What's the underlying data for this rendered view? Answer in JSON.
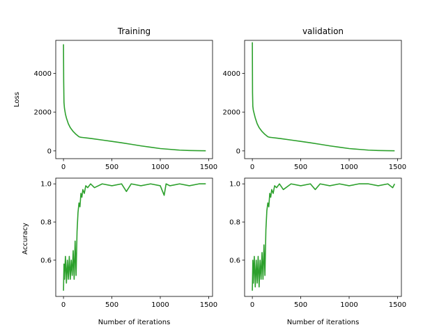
{
  "chart_data": [
    {
      "type": "line",
      "title": "Training",
      "xlabel": "",
      "ylabel": "Loss",
      "xlim": [
        -80,
        1540
      ],
      "ylim": [
        -400,
        5700
      ],
      "xticks": [
        0,
        500,
        1000,
        1500
      ],
      "xtick_labels": [
        "0",
        "500",
        "1000",
        "1500"
      ],
      "yticks": [
        0,
        2000,
        4000
      ],
      "ytick_labels": [
        "0",
        "2000",
        "4000"
      ],
      "grid": false,
      "series": [
        {
          "color": "#2ca02c",
          "x": [
            0,
            2,
            5,
            10,
            20,
            30,
            50,
            70,
            100,
            130,
            160,
            180,
            200,
            250,
            300,
            400,
            500,
            600,
            700,
            800,
            900,
            1000,
            1100,
            1200,
            1300,
            1400,
            1470
          ],
          "y": [
            5500,
            3600,
            2500,
            2200,
            1900,
            1700,
            1400,
            1200,
            1000,
            850,
            730,
            700,
            690,
            660,
            630,
            560,
            490,
            420,
            340,
            260,
            190,
            120,
            80,
            40,
            20,
            10,
            5
          ]
        }
      ]
    },
    {
      "type": "line",
      "title": "validation",
      "xlabel": "",
      "ylabel": "",
      "xlim": [
        -80,
        1540
      ],
      "ylim": [
        -400,
        5700
      ],
      "xticks": [
        0,
        500,
        1000,
        1500
      ],
      "xtick_labels": [
        "0",
        "500",
        "1000",
        "1500"
      ],
      "yticks": [
        0,
        2000,
        4000
      ],
      "ytick_labels": [
        "0",
        "2000",
        "4000"
      ],
      "grid": false,
      "series": [
        {
          "color": "#2ca02c",
          "x": [
            0,
            2,
            5,
            10,
            20,
            30,
            50,
            70,
            100,
            130,
            160,
            180,
            200,
            250,
            300,
            400,
            500,
            600,
            700,
            800,
            900,
            1000,
            1100,
            1200,
            1300,
            1400,
            1470
          ],
          "y": [
            5600,
            3000,
            2300,
            2100,
            1900,
            1700,
            1400,
            1200,
            1000,
            850,
            730,
            700,
            690,
            660,
            630,
            560,
            490,
            420,
            340,
            260,
            190,
            120,
            80,
            40,
            20,
            10,
            5
          ]
        }
      ]
    },
    {
      "type": "line",
      "title": "",
      "xlabel": "Number of iterations",
      "ylabel": "Accuracy",
      "xlim": [
        -80,
        1540
      ],
      "ylim": [
        0.41,
        1.03
      ],
      "xticks": [
        0,
        500,
        1000,
        1500
      ],
      "xtick_labels": [
        "0",
        "500",
        "1000",
        "1500"
      ],
      "yticks": [
        0.6,
        0.8,
        1.0
      ],
      "ytick_labels": [
        "0.6",
        "0.8",
        "1.0"
      ],
      "grid": false,
      "series": [
        {
          "color": "#2ca02c",
          "x": [
            0,
            5,
            10,
            20,
            30,
            40,
            50,
            60,
            70,
            80,
            90,
            100,
            110,
            120,
            130,
            140,
            150,
            160,
            170,
            180,
            190,
            200,
            215,
            230,
            250,
            280,
            320,
            400,
            500,
            600,
            650,
            700,
            800,
            900,
            1000,
            1040,
            1060,
            1100,
            1200,
            1300,
            1400,
            1470
          ],
          "y": [
            0.44,
            0.58,
            0.5,
            0.62,
            0.48,
            0.6,
            0.5,
            0.62,
            0.5,
            0.6,
            0.52,
            0.65,
            0.5,
            0.7,
            0.52,
            0.75,
            0.85,
            0.9,
            0.88,
            0.95,
            0.93,
            0.97,
            0.95,
            0.99,
            0.98,
            1.0,
            0.98,
            1.0,
            0.99,
            1.0,
            0.96,
            1.0,
            0.99,
            1.0,
            0.99,
            0.94,
            1.0,
            0.99,
            1.0,
            0.99,
            1.0,
            1.0
          ]
        }
      ]
    },
    {
      "type": "line",
      "title": "",
      "xlabel": "Number of iterations",
      "ylabel": "",
      "xlim": [
        -80,
        1540
      ],
      "ylim": [
        0.41,
        1.03
      ],
      "xticks": [
        0,
        500,
        1000,
        1500
      ],
      "xtick_labels": [
        "0",
        "500",
        "1000",
        "1500"
      ],
      "yticks": [
        0.6,
        0.8,
        1.0
      ],
      "ytick_labels": [
        "0.6",
        "0.8",
        "1.0"
      ],
      "grid": false,
      "series": [
        {
          "color": "#2ca02c",
          "x": [
            0,
            5,
            10,
            20,
            30,
            40,
            50,
            60,
            70,
            80,
            90,
            100,
            110,
            120,
            130,
            140,
            150,
            160,
            170,
            180,
            190,
            200,
            215,
            230,
            250,
            280,
            320,
            400,
            500,
            600,
            650,
            700,
            800,
            900,
            1000,
            1100,
            1200,
            1300,
            1400,
            1450,
            1470
          ],
          "y": [
            0.44,
            0.6,
            0.48,
            0.62,
            0.46,
            0.6,
            0.48,
            0.62,
            0.46,
            0.6,
            0.5,
            0.64,
            0.5,
            0.68,
            0.52,
            0.76,
            0.86,
            0.9,
            0.88,
            0.95,
            0.93,
            0.97,
            0.95,
            0.99,
            0.98,
            1.0,
            0.97,
            1.0,
            0.99,
            1.0,
            0.97,
            1.0,
            0.99,
            1.0,
            0.99,
            1.0,
            1.0,
            0.99,
            1.0,
            0.98,
            1.0
          ]
        }
      ]
    }
  ]
}
